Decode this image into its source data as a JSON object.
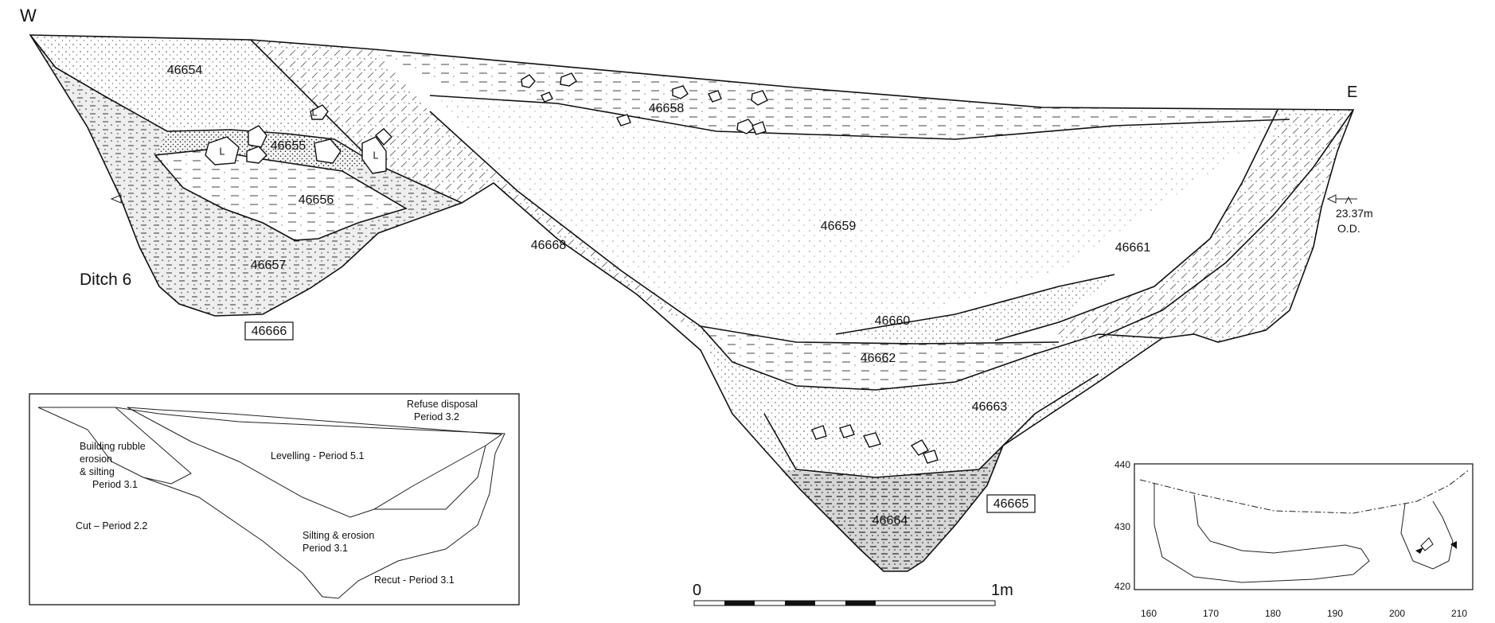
{
  "section": {
    "west_label": "W",
    "east_label": "E",
    "ditch_label": "Ditch 6",
    "level_mark": {
      "value": "23.37m",
      "unit": "O.D."
    },
    "contexts": [
      "46654",
      "46655",
      "46656",
      "46657",
      "46658",
      "46659",
      "46660",
      "46661",
      "46662",
      "46663",
      "46664",
      "46668"
    ],
    "boxed_contexts": [
      "46666",
      "46665"
    ],
    "stone_letter": "L"
  },
  "scale_bar": {
    "start": "0",
    "end": "1m"
  },
  "interpretation": {
    "labels": [
      "Refuse disposal",
      "Period 3.2",
      "Building rubble",
      "erosion",
      "& silting",
      "Period 3.1",
      "Levelling - Period 5.1",
      "Cut – Period 2.2",
      "Silting & erosion",
      "Period 3.1",
      "Recut - Period 3.1"
    ]
  },
  "location_plan": {
    "y_ticks": [
      "440",
      "430",
      "420"
    ],
    "x_ticks": [
      "160",
      "170",
      "180",
      "190",
      "200",
      "210"
    ]
  }
}
